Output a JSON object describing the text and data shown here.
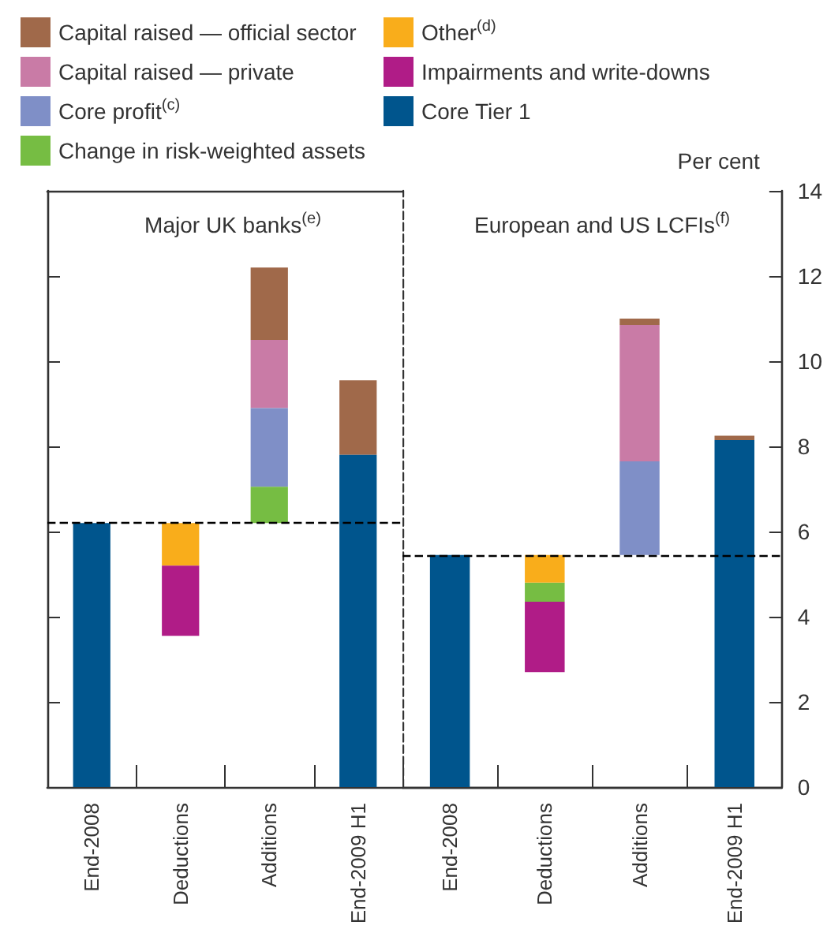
{
  "chart_data": [
    {
      "type": "bar",
      "title": "Major UK banks$^{(e)}$",
      "categories": [
        "End-2008",
        "Deductions",
        "Additions",
        "End-2009 H1"
      ],
      "ylim": [
        0,
        14
      ],
      "yticks": [
        0,
        2,
        4,
        6,
        8,
        10,
        12,
        14
      ],
      "tick_labels": "x",
      "grid": false,
      "legend": "top",
      "ref_lines": [
        {
          "axis": "y",
          "value": 6.2,
          "color": "#000000",
          "line_style": "dashed"
        }
      ],
      "series": [
        {
          "name": "Capital raised — official sector",
          "color": "#a0694a",
          "values": [
            null,
            null,
            1.7,
            1.75
          ],
          "base": [
            null,
            null,
            10.5,
            7.8
          ]
        },
        {
          "name": "Capital raised — private",
          "color": "#c97ba6",
          "values": [
            null,
            null,
            1.6,
            null
          ],
          "base": [
            null,
            null,
            8.9,
            null
          ]
        },
        {
          "name": "Core profit$^{(c)}$",
          "color": "#7f8fc7",
          "values": [
            null,
            null,
            1.85,
            null
          ],
          "base": [
            null,
            null,
            7.05,
            null
          ]
        },
        {
          "name": "Change in risk-weighted assets",
          "color": "#76bd43",
          "values": [
            null,
            null,
            0.85,
            null
          ],
          "base": [
            null,
            null,
            6.2,
            null
          ]
        },
        {
          "name": "Other$^{(d)}$",
          "color": "#f9ad1b",
          "values": [
            null,
            1.0,
            null,
            null
          ],
          "base": [
            null,
            5.2,
            null,
            null
          ]
        },
        {
          "name": "Impairments and write-downs",
          "color": "#b01c87",
          "values": [
            null,
            1.65,
            null,
            null
          ],
          "base": [
            null,
            3.55,
            null,
            null
          ]
        },
        {
          "name": "Core Tier 1",
          "color": "#00558d",
          "values": [
            6.2,
            null,
            null,
            7.8
          ],
          "base": [
            0,
            null,
            null,
            0
          ]
        }
      ]
    },
    {
      "type": "bar",
      "title": "European and US LCFIs$^{(f)}$",
      "ylabel": "Per cent",
      "categories": [
        "End-2008",
        "Deductions",
        "Additions",
        "End-2009 H1"
      ],
      "ylim": [
        0,
        14
      ],
      "yticks": [
        0,
        2,
        4,
        6,
        8,
        10,
        12,
        14
      ],
      "grid": false,
      "ref_lines": [
        {
          "axis": "y",
          "value": 5.45,
          "color": "#000000",
          "line_style": "dashed"
        }
      ],
      "series": [
        {
          "color": "#a0694a",
          "values": [
            null,
            null,
            0.15,
            0.1
          ],
          "base": [
            null,
            null,
            10.85,
            8.15
          ]
        },
        {
          "color": "#c97ba6",
          "values": [
            null,
            null,
            3.2,
            null
          ],
          "base": [
            null,
            null,
            7.65,
            null
          ]
        },
        {
          "color": "#7f8fc7",
          "values": [
            null,
            null,
            2.2,
            null
          ],
          "base": [
            null,
            null,
            5.45,
            null
          ]
        },
        {
          "color": "#76bd43",
          "values": [
            null,
            0.45,
            null,
            null
          ],
          "base": [
            null,
            4.35,
            null,
            null
          ]
        },
        {
          "color": "#f9ad1b",
          "values": [
            null,
            0.65,
            null,
            null
          ],
          "base": [
            null,
            4.8,
            null,
            null
          ]
        },
        {
          "color": "#b01c87",
          "values": [
            null,
            1.65,
            null,
            null
          ],
          "base": [
            null,
            2.7,
            null,
            null
          ]
        },
        {
          "color": "#00558d",
          "values": [
            5.45,
            null,
            null,
            8.15
          ],
          "base": [
            0,
            null,
            null,
            0
          ]
        }
      ]
    }
  ]
}
